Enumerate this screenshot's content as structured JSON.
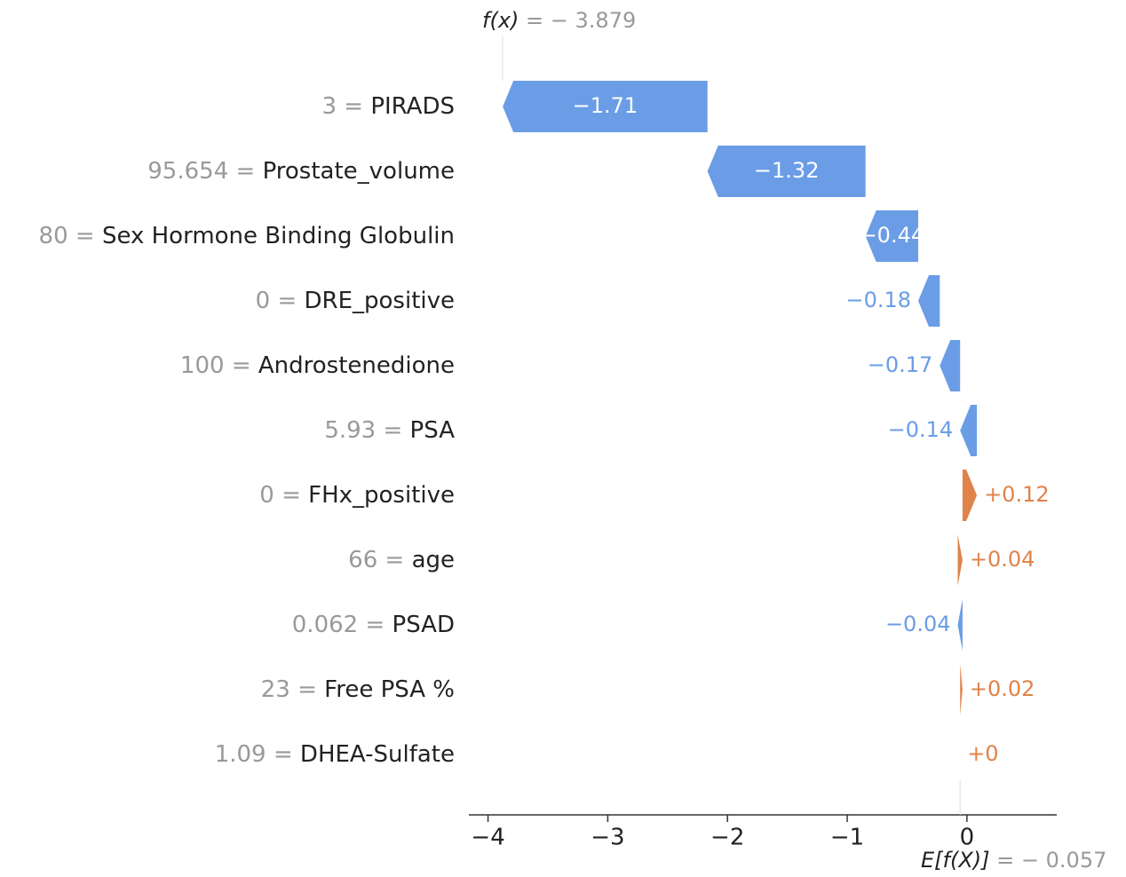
{
  "chart_data": {
    "type": "waterfall",
    "output": {
      "name": "f(x)",
      "equals": "=",
      "label": "− 3.879",
      "value": -3.879
    },
    "base": {
      "name": "E[f(X)]",
      "equals": "=",
      "label": "− 0.057",
      "value": -0.057
    },
    "feature_values": [
      "3 =",
      "95.654 =",
      "80 =",
      "0 =",
      "100 =",
      "5.93 =",
      "0 =",
      "66 =",
      "0.062 =",
      "23 =",
      "1.09 ="
    ],
    "categories": [
      "PIRADS",
      "Prostate_volume",
      "Sex Hormone Binding Globulin",
      "DRE_positive",
      "Androstenedione",
      "PSA",
      "FHx_positive",
      "age",
      "PSAD",
      "Free PSA %",
      "DHEA-Sulfate"
    ],
    "values": [
      -1.71,
      -1.32,
      -0.44,
      -0.18,
      -0.17,
      -0.14,
      0.12,
      0.04,
      -0.04,
      0.02,
      0
    ],
    "value_labels": [
      "−1.71",
      "−1.32",
      "−0.44",
      "−0.18",
      "−0.17",
      "−0.14",
      "+0.12",
      "+0.04",
      "−0.04",
      "+0.02",
      "+0"
    ],
    "colors": {
      "negative": "#6a9de6",
      "positive": "#e0834a"
    },
    "xlim": [
      -4.16,
      0.75
    ],
    "xticks": [
      {
        "value": -4,
        "label": "−4"
      },
      {
        "value": -3,
        "label": "−3"
      },
      {
        "value": -2,
        "label": "−2"
      },
      {
        "value": -1,
        "label": "−1"
      },
      0
    ]
  }
}
